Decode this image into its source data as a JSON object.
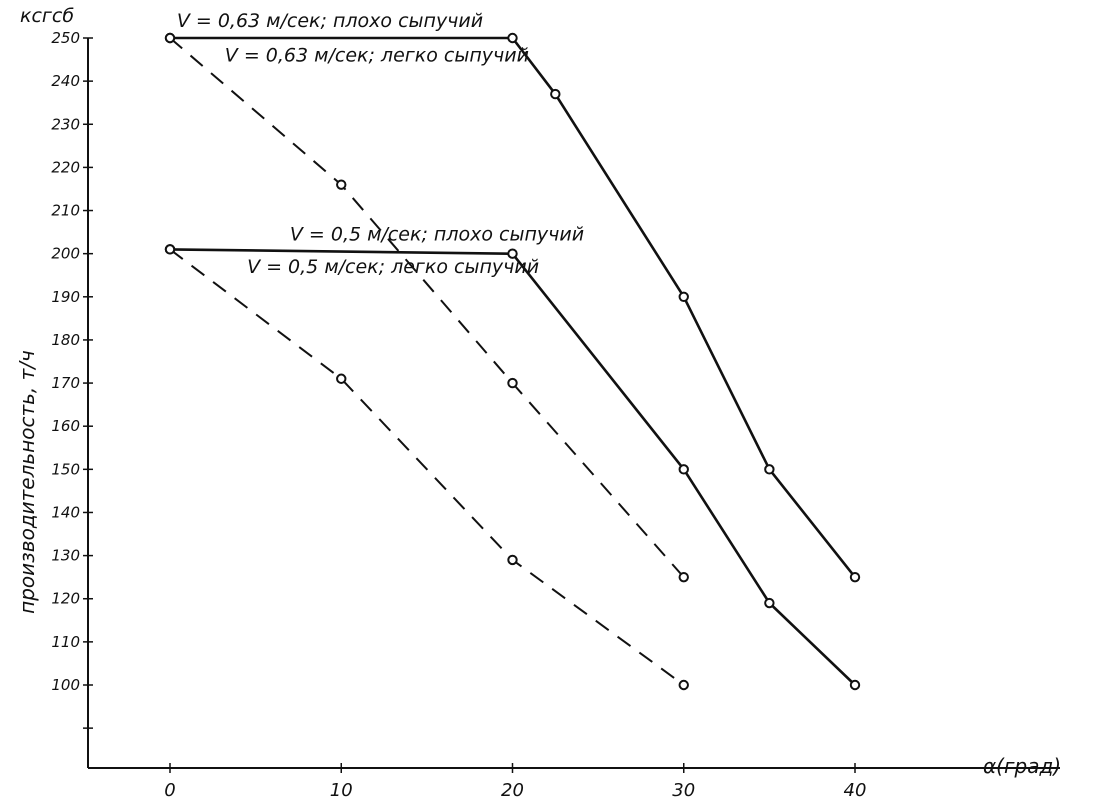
{
  "chart_data": {
    "type": "line",
    "title": "",
    "corner_label": "ксгсб",
    "xlabel": "α(град)",
    "ylabel": "производительность, т/ч",
    "xlim": [
      -3,
      43
    ],
    "ylim": [
      80,
      252
    ],
    "x_ticks": [
      0,
      10,
      20,
      30,
      40
    ],
    "x_tick_labels": [
      "0",
      "10",
      "20",
      "30",
      "40"
    ],
    "y_ticks": [
      90,
      100,
      110,
      120,
      130,
      140,
      150,
      160,
      170,
      180,
      190,
      200,
      210,
      220,
      230,
      240,
      250
    ],
    "y_tick_labels": [
      "",
      "100",
      "110",
      "120",
      "130",
      "140",
      "150",
      "160",
      "170",
      "180",
      "190",
      "200",
      "210",
      "220",
      "230",
      "240",
      "250"
    ],
    "grid": false,
    "legend": "none",
    "colors": {
      "line": "#111111",
      "background": "#ffffff"
    },
    "series": [
      {
        "name": "V = 0,63 м/сек; плохо сыпучий",
        "style": "solid",
        "x": [
          0,
          20,
          22.5,
          30,
          35,
          40
        ],
        "y": [
          250,
          250,
          237,
          190,
          150,
          125
        ]
      },
      {
        "name": "V = 0,63 м/сек; легко сыпучий",
        "style": "dashed",
        "x": [
          0,
          10,
          20,
          30
        ],
        "y": [
          250,
          216,
          170,
          125
        ]
      },
      {
        "name": "V = 0,5 м/сек; плохо сыпучий",
        "style": "solid",
        "x": [
          0,
          20,
          30,
          35,
          40
        ],
        "y": [
          201,
          200,
          150,
          119,
          100
        ]
      },
      {
        "name": "V = 0,5 м/сек; легко сыпучий",
        "style": "dashed",
        "x": [
          0,
          10,
          20,
          30
        ],
        "y": [
          201,
          171,
          129,
          100
        ]
      }
    ],
    "annotations": [
      {
        "text": "V = 0,63 м/сек;  плохо сыпучий",
        "x": 0.4,
        "y": 252.5
      },
      {
        "text": "V = 0,63 м/сек; легко сыпучий",
        "x": 3.2,
        "y": 244.5
      },
      {
        "text": "V = 0,5 м/сек;   плохо сыпучий",
        "x": 7,
        "y": 203
      },
      {
        "text": "V = 0,5 м/сек; легко сыпучий",
        "x": 4.5,
        "y": 195.5
      }
    ]
  }
}
